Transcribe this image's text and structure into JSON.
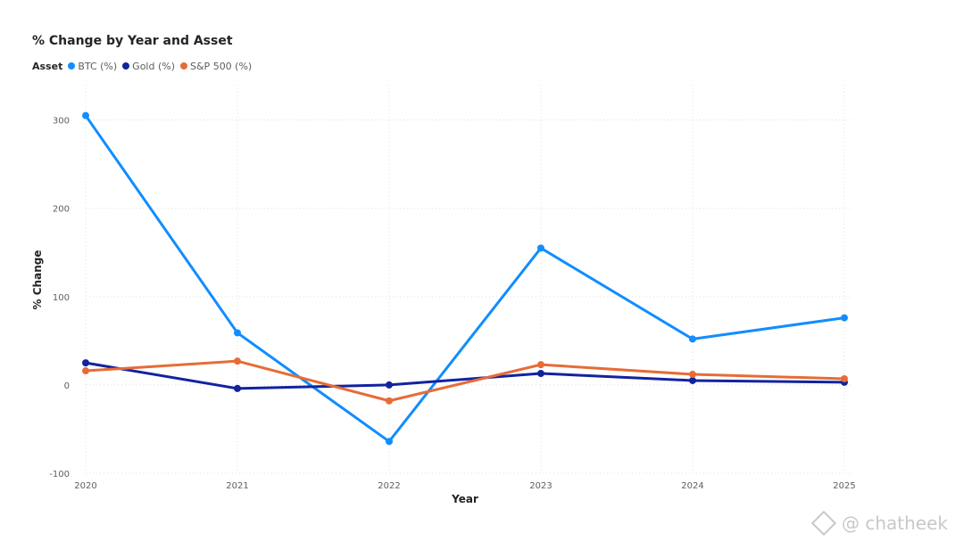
{
  "chart_data": {
    "type": "line",
    "title": "% Change by Year and Asset",
    "legend_title": "Asset",
    "xlabel": "Year",
    "ylabel": "% Change",
    "x": [
      "2020",
      "2021",
      "2022",
      "2023",
      "2024",
      "2025"
    ],
    "y_ticks": [
      "-100",
      "0",
      "100",
      "200",
      "300"
    ],
    "ylim": [
      -100,
      340
    ],
    "grid": true,
    "legend_position": "top-left",
    "series": [
      {
        "name": "BTC (%)",
        "color": "#118DFF",
        "values": [
          305,
          59,
          -64,
          155,
          52,
          76
        ]
      },
      {
        "name": "Gold (%)",
        "color": "#12239E",
        "values": [
          25,
          -4,
          0,
          13,
          5,
          3
        ]
      },
      {
        "name": "S&P 500 (%)",
        "color": "#E66C37",
        "values": [
          16,
          27,
          -18,
          23,
          12,
          7
        ]
      }
    ]
  },
  "watermark": {
    "text": "@ chatheek"
  }
}
